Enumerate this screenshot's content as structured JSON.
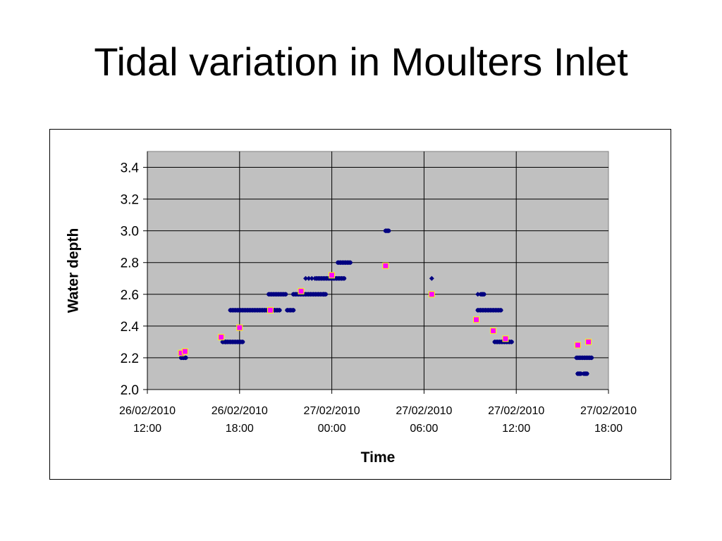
{
  "slide": {
    "title": "Tidal variation in Moulters Inlet"
  },
  "chart_data": {
    "type": "scatter",
    "title": "",
    "xlabel": "Time",
    "ylabel": "Water depth",
    "x_unit": "hours from 26/02/2010 12:00",
    "xlim": [
      0,
      30
    ],
    "ylim": [
      2.0,
      3.4
    ],
    "y_ticks": [
      "2.0",
      "2.2",
      "2.4",
      "2.6",
      "2.8",
      "3.0",
      "3.2",
      "3.4"
    ],
    "x_ticks": [
      {
        "x": 0,
        "line1": "26/02/2010",
        "line2": "12:00"
      },
      {
        "x": 6,
        "line1": "26/02/2010",
        "line2": "18:00"
      },
      {
        "x": 12,
        "line1": "27/02/2010",
        "line2": "00:00"
      },
      {
        "x": 18,
        "line1": "27/02/2010",
        "line2": "06:00"
      },
      {
        "x": 24,
        "line1": "27/02/2010",
        "line2": "12:00"
      },
      {
        "x": 30,
        "line1": "27/02/2010",
        "line2": "18:00"
      }
    ],
    "grid": true,
    "plot_background": "#c0c0c0",
    "legend": "none",
    "series": [
      {
        "marker": "diamond",
        "color": "#000080",
        "segments": [
          {
            "x0": 2.2,
            "x1": 2.5,
            "y": 2.2
          },
          {
            "x0": 4.9,
            "x1": 6.2,
            "y": 2.3
          },
          {
            "x0": 5.4,
            "x1": 7.8,
            "y": 2.5
          },
          {
            "x0": 7.8,
            "x1": 8.6,
            "y": 2.5
          },
          {
            "x0": 9.1,
            "x1": 9.5,
            "y": 2.5
          },
          {
            "x0": 7.9,
            "x1": 9.0,
            "y": 2.6
          },
          {
            "x0": 9.5,
            "x1": 11.6,
            "y": 2.6
          },
          {
            "x0": 11.0,
            "x1": 12.8,
            "y": 2.7
          },
          {
            "x0": 12.4,
            "x1": 13.2,
            "y": 2.8
          },
          {
            "x0": 15.5,
            "x1": 15.7,
            "y": 3.0
          },
          {
            "x0": 21.7,
            "x1": 21.9,
            "y": 2.6
          },
          {
            "x0": 21.5,
            "x1": 23.0,
            "y": 2.5
          },
          {
            "x0": 22.6,
            "x1": 23.7,
            "y": 2.3
          },
          {
            "x0": 28.0,
            "x1": 28.9,
            "y": 2.2
          },
          {
            "x0": 28.0,
            "x1": 28.2,
            "y": 2.1
          },
          {
            "x0": 28.4,
            "x1": 28.6,
            "y": 2.1
          }
        ],
        "points": [
          {
            "x": 5.1,
            "y": 2.3
          },
          {
            "x": 10.3,
            "y": 2.7
          },
          {
            "x": 10.5,
            "y": 2.7
          },
          {
            "x": 10.7,
            "y": 2.7
          },
          {
            "x": 10.9,
            "y": 2.7
          },
          {
            "x": 11.5,
            "y": 2.6
          },
          {
            "x": 18.5,
            "y": 2.7
          },
          {
            "x": 21.5,
            "y": 2.6
          },
          {
            "x": 27.9,
            "y": 2.2
          }
        ]
      },
      {
        "marker": "square",
        "color": "#ff00ff",
        "edge": "#ffff00",
        "points": [
          {
            "x": 2.2,
            "y": 2.23
          },
          {
            "x": 2.45,
            "y": 2.24
          },
          {
            "x": 4.8,
            "y": 2.33
          },
          {
            "x": 6.0,
            "y": 2.39
          },
          {
            "x": 8.0,
            "y": 2.5
          },
          {
            "x": 10.0,
            "y": 2.62
          },
          {
            "x": 12.0,
            "y": 2.72
          },
          {
            "x": 15.5,
            "y": 2.78
          },
          {
            "x": 18.5,
            "y": 2.6
          },
          {
            "x": 21.4,
            "y": 2.44
          },
          {
            "x": 22.5,
            "y": 2.37
          },
          {
            "x": 23.3,
            "y": 2.32
          },
          {
            "x": 28.0,
            "y": 2.28
          },
          {
            "x": 28.7,
            "y": 2.3
          }
        ]
      }
    ]
  }
}
